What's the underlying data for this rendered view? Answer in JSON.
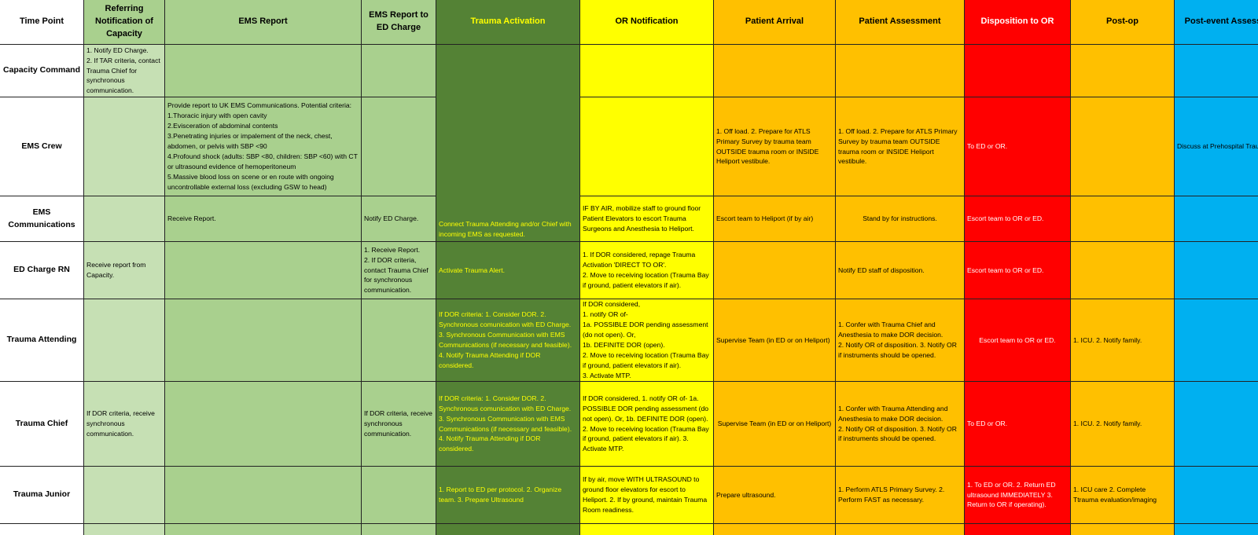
{
  "table": {
    "columns": [
      "Time Point",
      "Referring Notification of Capacity",
      "EMS Report",
      "EMS Report to ED Charge",
      "Trauma Activation",
      "OR Notification",
      "Patient Arrival",
      "Patient Assessment",
      "Disposition to OR",
      "Post-op",
      "Post-event Assessment"
    ],
    "rows": [
      {
        "label": "Capacity Command",
        "cells": [
          "1. Notify ED Charge.\n2. If TAR criteria, contact Trauma Chief for synchronous communication.",
          null,
          null,
          null,
          null,
          null,
          null,
          null,
          null,
          null
        ]
      },
      {
        "label": "EMS Crew",
        "cells": [
          null,
          "Provide report to UK EMS Communications.  Potential criteria:\n1.Thoracic injury with open cavity\n2.Evisceration of abdominal contents\n3.Penetrating injuries or impalement of the neck, chest, abdomen, or pelvis with SBP <90\n4.Profound shock (adults: SBP <80, children: SBP <60) with CT or ultrasound evidence of hemoperitoneum\n5.Massive blood loss on scene or en route with ongoing uncontrollable external loss (excluding GSW to head)",
          null,
          null,
          null,
          "1. Off load.                2. Prepare for ATLS Primary Survey by trauma team OUTSIDE trauma room or INSIDE Heliport vestibule.",
          "1. Off load.                2. Prepare for ATLS Primary Survey by trauma team OUTSIDE trauma room or INSIDE Heliport vestibule.",
          "To ED or OR.",
          null,
          "Discuss at Prehospital Trauma QA"
        ]
      },
      {
        "label": "EMS Communications",
        "cells": [
          null,
          "Receive Report.",
          "Notify ED Charge.",
          "Connect Trauma Attending and/or Chief with incoming EMS as requested.",
          "IF BY AIR, mobilize staff to ground floor Patient Elevators to escort Trauma Surgeons and Anesthesia to Heliport.",
          "Escort team to Heliport (if by air)",
          "Stand by for instructions.",
          "Escort team to OR or ED.",
          null,
          null
        ]
      },
      {
        "label": "ED Charge RN",
        "cells": [
          "Receive report from Capacity.",
          null,
          "1. Receive Report.\n2. If DOR criteria, contact Trauma Chief for synchronous communication.",
          "Activate Trauma Alert.",
          "1. If DOR considered, repage Trauma Activation 'DIRECT TO OR'.\n2. Move to receiving location (Trauma Bay if ground, patient elevators if air).",
          null,
          "Notify ED staff of disposition.",
          "Escort team to OR or ED.",
          null,
          null
        ]
      },
      {
        "label": "Trauma Attending",
        "cells": [
          null,
          null,
          null,
          "If DOR criteria:                          1. Consider DOR.                         2. Synchronous comunication with ED Charge.\n3. Synchronous Communication with EMS Communications (if necessary and feasible).\n4. Notify Trauma Attending if DOR considered.",
          "If DOR considered,\n1. notify OR of-\n1a. POSSIBLE DOR pending assessment (do not open). Or,\n1b. DEFINITE DOR (open).\n2. Move to receiving location (Trauma Bay if ground, patient elevators if air).\n3. Activate MTP.",
          "Supervise Team (in ED or on Heliport)",
          "1. Confer with Trauma Chief and Anesthesia to make DOR decision.\n2. Notify OR of disposition.          3. Notify OR if instruments should be opened.",
          "Escort team to OR or ED.",
          "1. ICU.                          2. Notify family.",
          null
        ]
      },
      {
        "label": "Trauma Chief",
        "cells": [
          "If DOR criteria, receive synchronous communication.",
          null,
          "If DOR criteria, receive synchronous communication.",
          "If DOR criteria:                          1. Consider DOR.                         2. Synchronous comunication with ED Charge.\n3. Synchronous Communication with EMS Communications (if necessary and feasible).\n4. Notify Trauma Attending if DOR considered.",
          "If DOR considered,                  1. notify OR of-                               1a. POSSIBLE DOR pending assessment (do not open). Or,                        1b. DEFINITE DOR (open).          2. Move to receiving location (Trauma Bay if ground, patient elevators if air).       3. Activate MTP.",
          "Supervise Team (in ED or on Heliport)",
          "1. Confer with Trauma Attending and Anesthesia to make DOR decision.\n2. Notify OR of disposition.          3. Notify OR if instruments should be opened.",
          "To ED or OR.",
          "1. ICU.                          2. Notify family.",
          null
        ]
      },
      {
        "label": "Trauma Junior",
        "cells": [
          null,
          null,
          null,
          "1. Report to ED per protocol.          2. Organize team.                    3. Prepare Ultrasound",
          "If by air, move WITH ULTRASOUND to ground floor elevators for escort to Heliport.                              2. If by ground, maintain Trauma Room readiness.",
          "Prepare ultrasound.",
          "1. Perform ATLS Primary Survey.       2. Perform FAST as necessary.",
          "1. To ED or OR.                2. Return ED ultrasound IMMEDIATELY              3. Return to OR if operating).",
          "1. ICU care                    2. Complete Ttrauma evaluation/imaging",
          null
        ]
      }
    ]
  }
}
